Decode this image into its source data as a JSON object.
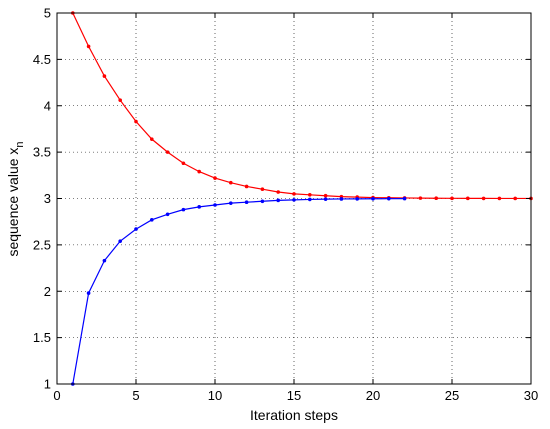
{
  "chart_data": {
    "type": "line",
    "xlabel": "Iteration steps",
    "ylabel_main": "sequence value x",
    "ylabel_subscript": "n",
    "xlim": [
      0,
      30
    ],
    "ylim": [
      1,
      5
    ],
    "xticks": [
      0,
      5,
      10,
      15,
      20,
      25,
      30
    ],
    "yticks": [
      1,
      1.5,
      2,
      2.5,
      3,
      3.5,
      4,
      4.5,
      5
    ],
    "xtick_labels": [
      "0",
      "5",
      "10",
      "15",
      "20",
      "25",
      "30"
    ],
    "ytick_labels": [
      "1",
      "1.5",
      "2",
      "2.5",
      "3",
      "3.5",
      "4",
      "4.5",
      "5"
    ],
    "grid": true,
    "series": [
      {
        "color": "#ff0000",
        "marker": "dot",
        "x": [
          1,
          2,
          3,
          4,
          5,
          6,
          7,
          8,
          9,
          10,
          11,
          12,
          13,
          14,
          15,
          16,
          17,
          18,
          19,
          20,
          21,
          22,
          23,
          24,
          25,
          26,
          27,
          28,
          29,
          30
        ],
        "y": [
          5.0,
          4.64,
          4.32,
          4.06,
          3.83,
          3.64,
          3.5,
          3.38,
          3.29,
          3.22,
          3.17,
          3.13,
          3.1,
          3.07,
          3.05,
          3.04,
          3.03,
          3.02,
          3.015,
          3.01,
          3.008,
          3.006,
          3.004,
          3.003,
          3.002,
          3.0015,
          3.001,
          3.0007,
          3.0005,
          3.0004
        ]
      },
      {
        "color": "#0000ff",
        "marker": "dot",
        "x": [
          1,
          2,
          3,
          4,
          5,
          6,
          7,
          8,
          9,
          10,
          11,
          12,
          13,
          14,
          15,
          16,
          17,
          18,
          19,
          20,
          21,
          22
        ],
        "y": [
          1.0,
          1.98,
          2.33,
          2.54,
          2.67,
          2.77,
          2.83,
          2.88,
          2.91,
          2.93,
          2.95,
          2.96,
          2.97,
          2.98,
          2.985,
          2.99,
          2.993,
          2.995,
          2.996,
          2.997,
          2.998,
          2.999
        ]
      }
    ]
  }
}
